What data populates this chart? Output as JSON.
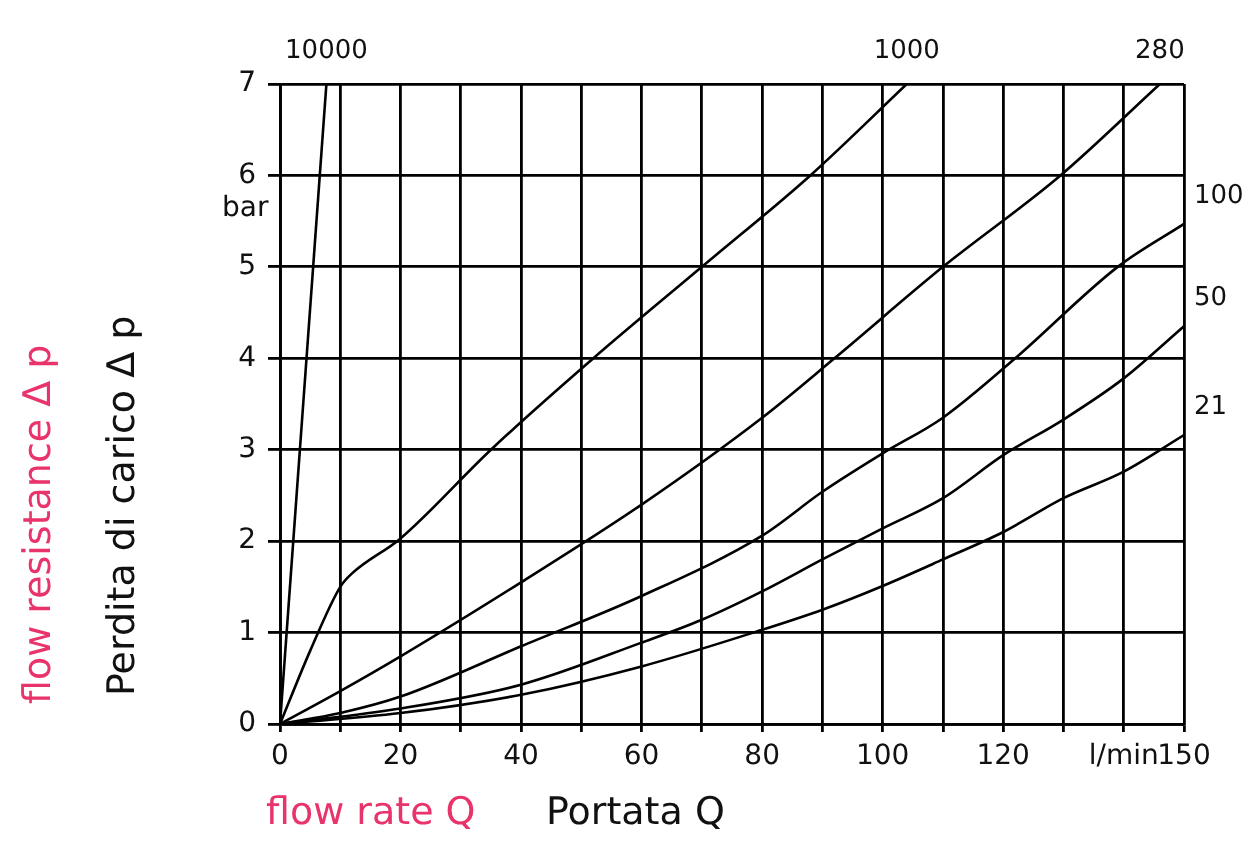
{
  "chart_data": {
    "type": "line",
    "xlabel": "Portata Q",
    "ylabel": "Perdita di carico Δ p",
    "annotations": [
      "flow rate Q",
      "flow resistance Δ p",
      "bar"
    ],
    "xlim": [
      0,
      150
    ],
    "ylim": [
      0,
      7
    ],
    "xticks": [
      0,
      {
        "value": 10,
        "label": null
      },
      20,
      {
        "value": 30,
        "label": null
      },
      40,
      {
        "value": 50,
        "label": null
      },
      60,
      {
        "value": 70,
        "label": null
      },
      80,
      {
        "value": 90,
        "label": null
      },
      100,
      {
        "value": 110,
        "label": null
      },
      120,
      {
        "value": 130,
        "label": null
      },
      {
        "value": 140,
        "label": "l/min"
      },
      150
    ],
    "yticks": [
      0,
      1,
      2,
      3,
      4,
      5,
      6,
      7
    ],
    "grid": true,
    "marker": "none",
    "series": [
      {
        "name": "10000",
        "color": "#000000",
        "x": [
          0,
          7.7
        ],
        "values": [
          0,
          7
        ]
      },
      {
        "name": "1000",
        "color": "#000000",
        "x": [
          0,
          5,
          10,
          12,
          20,
          35,
          52,
          70,
          88,
          104
        ],
        "values": [
          0,
          0.8,
          1.5,
          1.65,
          2.03,
          3,
          4,
          5,
          6,
          7
        ]
      },
      {
        "name": "280",
        "color": "#000000",
        "x": [
          0,
          10,
          20,
          40,
          60,
          80,
          92,
          110,
          129.5,
          146
        ],
        "values": [
          0,
          0.36,
          0.74,
          1.55,
          2.4,
          3.35,
          4,
          5,
          6,
          7
        ]
      },
      {
        "name": "100",
        "color": "#000000",
        "x": [
          0,
          10,
          20,
          40,
          60,
          80,
          90,
          100,
          110,
          122,
          139,
          150
        ],
        "values": [
          0,
          0.12,
          0.3,
          0.85,
          1.4,
          2.06,
          2.54,
          2.96,
          3.35,
          4,
          5,
          5.47
        ]
      },
      {
        "name": "50",
        "color": "#000000",
        "x": [
          0,
          20,
          40,
          60,
          70,
          80,
          90,
          100,
          110,
          120,
          130,
          140,
          150
        ],
        "values": [
          0,
          0.17,
          0.43,
          0.89,
          1.14,
          1.45,
          1.8,
          2.14,
          2.47,
          2.94,
          3.33,
          3.78,
          4.35
        ]
      },
      {
        "name": "21",
        "color": "#000000",
        "x": [
          0,
          20,
          40,
          60,
          80,
          90,
          100,
          110,
          120,
          130,
          140,
          150
        ],
        "values": [
          0,
          0.12,
          0.32,
          0.63,
          1.03,
          1.25,
          1.51,
          1.8,
          2.1,
          2.47,
          2.76,
          3.16
        ]
      }
    ]
  }
}
